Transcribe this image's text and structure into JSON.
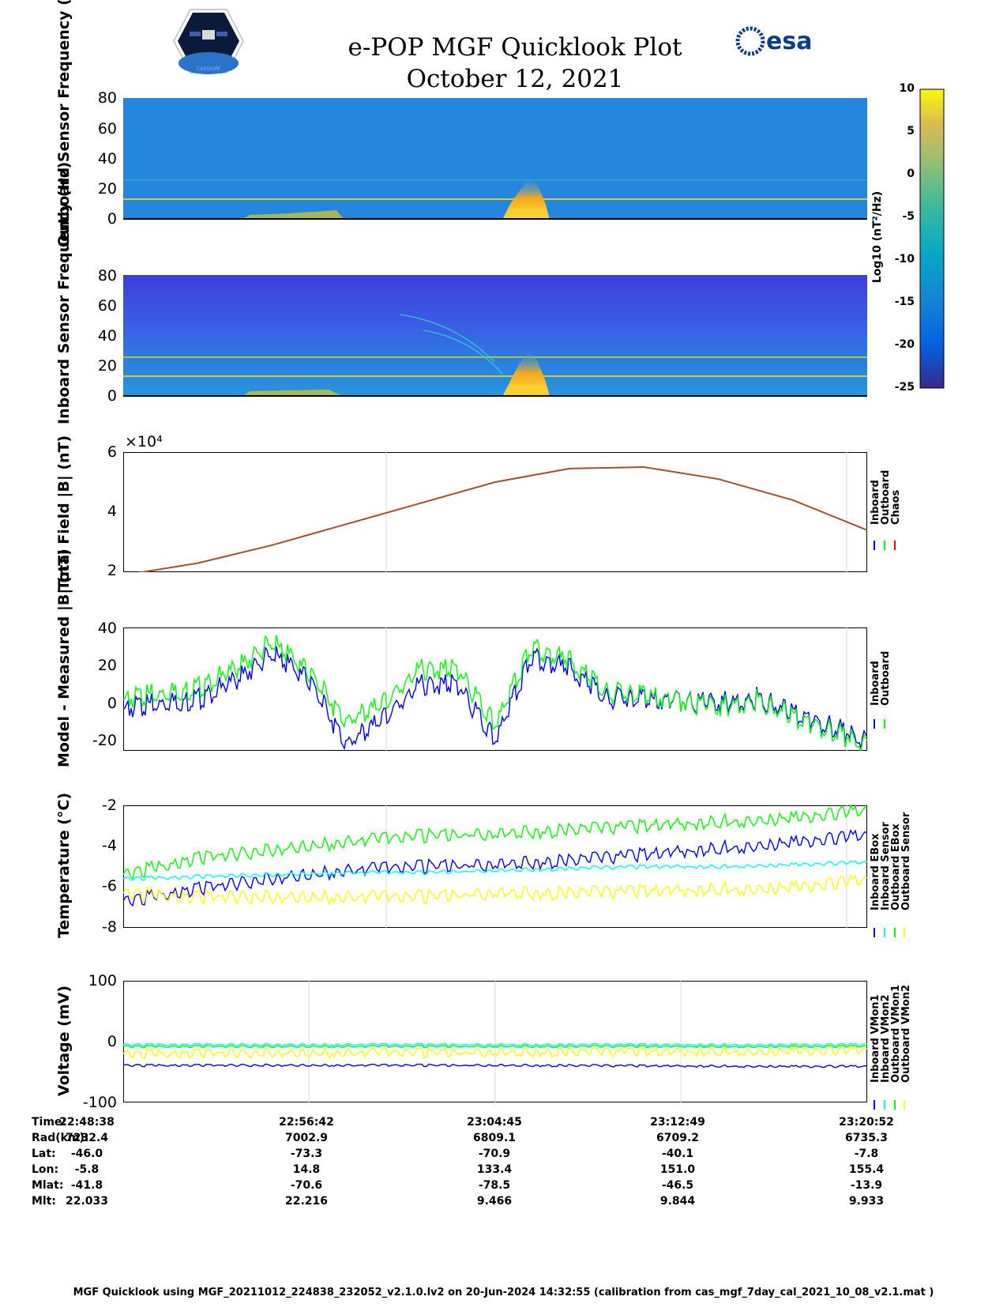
{
  "header": {
    "title_line1": "e-POP MGF Quicklook Plot",
    "title_line2": "October 12, 2021",
    "logo_left_text": "CASSIOPE",
    "logo_right_text": "esa"
  },
  "colorbar": {
    "label": "Log10 (nT²/Hz)",
    "ticks": [
      "10",
      "5",
      "0",
      "-5",
      "-10",
      "-15",
      "-20",
      "-25"
    ],
    "range": [
      -25,
      10
    ]
  },
  "chart_data": [
    {
      "type": "heatmap",
      "ylabel": "Outboard Sensor Frequency (Hz)",
      "ylim": [
        0,
        80
      ],
      "yticks": [
        "80",
        "60",
        "40",
        "20",
        "0"
      ],
      "features": {
        "constant_lines_hz": [
          13,
          25
        ],
        "burst_time": "23:04:00"
      }
    },
    {
      "type": "heatmap",
      "ylabel": "Inboard Sensor Frequency (Hz)",
      "ylim": [
        0,
        80
      ],
      "yticks": [
        "80",
        "60",
        "40",
        "20",
        "0"
      ],
      "features": {
        "constant_lines_hz": [
          13,
          25
        ],
        "burst_time": "23:04:00"
      }
    },
    {
      "type": "line",
      "ylabel": "Total Field |B| (nT)",
      "multiplier": "×10⁴",
      "ylim": [
        2,
        6
      ],
      "yticks": [
        "6",
        "4",
        "2"
      ],
      "legend": [
        "Inboard",
        "Outboard",
        "Chaos"
      ],
      "legend_colors": [
        "#0000ff",
        "#00ff00",
        "#ff0000"
      ],
      "series_color": "#a0522d",
      "x": [
        0,
        0.1,
        0.2,
        0.3,
        0.4,
        0.5,
        0.6,
        0.7,
        0.8,
        0.9,
        1.0
      ],
      "values": [
        1.9,
        2.3,
        2.9,
        3.6,
        4.3,
        5.0,
        5.45,
        5.5,
        5.1,
        4.4,
        3.4
      ]
    },
    {
      "type": "line",
      "ylabel": "Model - Measured |B| (nT)",
      "ylim": [
        -25,
        40
      ],
      "yticks": [
        "40",
        "20",
        "0",
        "-20"
      ],
      "legend": [
        "Inboard",
        "Outboard"
      ],
      "legend_colors": [
        "#0000ff",
        "#00ff00"
      ],
      "x": [
        0,
        0.05,
        0.1,
        0.15,
        0.2,
        0.25,
        0.3,
        0.35,
        0.4,
        0.45,
        0.5,
        0.55,
        0.6,
        0.65,
        0.7,
        0.75,
        0.8,
        0.85,
        0.9,
        0.95,
        1.0
      ],
      "series": [
        {
          "name": "Inboard",
          "values": [
            -3,
            0,
            2,
            12,
            26,
            12,
            -22,
            -8,
            10,
            10,
            -20,
            25,
            18,
            3,
            2,
            1,
            0,
            3,
            -5,
            -12,
            -20
          ]
        },
        {
          "name": "Outboard",
          "values": [
            2,
            5,
            8,
            18,
            32,
            16,
            -10,
            0,
            18,
            18,
            -12,
            30,
            22,
            6,
            4,
            1,
            -2,
            2,
            -7,
            -14,
            -22
          ]
        }
      ]
    },
    {
      "type": "line",
      "ylabel": "Temperature (°C)",
      "ylim": [
        -8,
        -2
      ],
      "yticks": [
        "-2",
        "-4",
        "-6",
        "-8"
      ],
      "legend": [
        "Inboard EBox",
        "Inboard Sensor",
        "Outboard EBox",
        "Outboard Sensor"
      ],
      "legend_colors": [
        "#0000ff",
        "#00ffff",
        "#00ff00",
        "#ffff00"
      ],
      "x": [
        0,
        0.1,
        0.2,
        0.3,
        0.4,
        0.5,
        0.6,
        0.7,
        0.8,
        0.9,
        1.0
      ],
      "series": [
        {
          "name": "Inboard EBox",
          "values": [
            -6.7,
            -6.1,
            -5.6,
            -5.2,
            -5.0,
            -4.9,
            -4.7,
            -4.4,
            -4.1,
            -3.8,
            -3.5
          ]
        },
        {
          "name": "Inboard Sensor",
          "values": [
            -5.6,
            -5.5,
            -5.4,
            -5.3,
            -5.3,
            -5.2,
            -5.1,
            -5.0,
            -5.0,
            -4.9,
            -4.8
          ]
        },
        {
          "name": "Outboard EBox",
          "values": [
            -5.4,
            -4.6,
            -4.2,
            -3.8,
            -3.5,
            -3.4,
            -3.2,
            -3.0,
            -2.8,
            -2.6,
            -2.3
          ]
        },
        {
          "name": "Outboard Sensor",
          "values": [
            -6.3,
            -6.5,
            -6.5,
            -6.5,
            -6.5,
            -6.3,
            -6.3,
            -6.2,
            -6.1,
            -6.0,
            -5.7
          ]
        }
      ]
    },
    {
      "type": "line",
      "ylabel": "Voltage (mV)",
      "ylim": [
        -100,
        100
      ],
      "yticks": [
        "100",
        "0",
        "-100"
      ],
      "legend": [
        "Inboard VMon1",
        "Inboard VMon2",
        "Outboard VMon1",
        "Outboard VMon2"
      ],
      "legend_colors": [
        "#0000ff",
        "#00ffff",
        "#00ff00",
        "#ffff00"
      ],
      "x": [
        0,
        0.5,
        1.0
      ],
      "series": [
        {
          "name": "Inboard VMon1",
          "values": [
            -39,
            -39,
            -41
          ]
        },
        {
          "name": "Inboard VMon2",
          "values": [
            -5,
            -5,
            -5
          ]
        },
        {
          "name": "Outboard VMon1",
          "values": [
            -8,
            -8,
            -8
          ]
        },
        {
          "name": "Outboard VMon2",
          "values": [
            -20,
            -18,
            -15
          ]
        }
      ]
    }
  ],
  "ephemeris": {
    "labels": [
      "Time:",
      "Rad(km):",
      "Lat:",
      "Lon:",
      "Mlat:",
      "Mlt:"
    ],
    "columns": [
      [
        "22:48:38",
        "7232.4",
        "-46.0",
        "-5.8",
        "-41.8",
        "22.033"
      ],
      [
        "22:56:42",
        "7002.9",
        "-73.3",
        "14.8",
        "-70.6",
        "22.216"
      ],
      [
        "23:04:45",
        "6809.1",
        "-70.9",
        "133.4",
        "-78.5",
        "9.466"
      ],
      [
        "23:12:49",
        "6709.2",
        "-40.1",
        "151.0",
        "-46.5",
        "9.844"
      ],
      [
        "23:20:52",
        "6735.3",
        "-7.8",
        "155.4",
        "-13.9",
        "9.933"
      ]
    ]
  },
  "footer": "MGF Quicklook using MGF_20211012_224838_232052_v2.1.0.lv2 on 20-Jun-2024 14:32:55 (calibration from cas_mgf_7day_cal_2021_10_08_v2.1.mat )"
}
